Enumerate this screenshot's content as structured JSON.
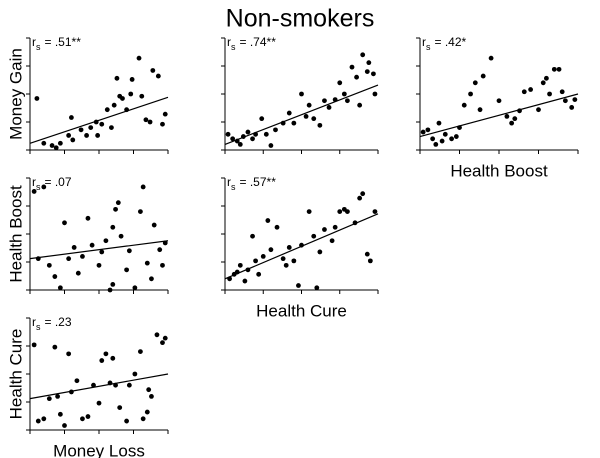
{
  "title": "Non-smokers",
  "chart_data": [
    {
      "type": "scatter",
      "ylabel": "Money Gain",
      "color": "#000000",
      "annotation": {
        "symbol": "r",
        "subscript": "s",
        "text": "= .51**"
      },
      "xlim": [
        0,
        100
      ],
      "ylim": [
        0,
        100
      ],
      "xticks": [
        0,
        25,
        50,
        75,
        100
      ],
      "yticks": [
        0,
        25,
        50,
        75,
        100
      ],
      "x": [
        5,
        10,
        16,
        19,
        22,
        28,
        30,
        31,
        37,
        41,
        44,
        48,
        49,
        52,
        56,
        59,
        61,
        63,
        65,
        67,
        70,
        73,
        74,
        79,
        81,
        84,
        87,
        89,
        93,
        96,
        98
      ],
      "values": [
        46,
        6,
        4,
        2,
        6,
        13,
        29,
        9,
        18,
        13,
        20,
        25,
        13,
        23,
        36,
        20,
        40,
        64,
        48,
        46,
        36,
        50,
        63,
        82,
        48,
        27,
        25,
        71,
        66,
        23,
        32
      ],
      "fit": {
        "x": [
          0,
          100
        ],
        "values": [
          6,
          47
        ]
      }
    },
    {
      "type": "scatter",
      "color": "#000000",
      "annotation": {
        "symbol": "r",
        "subscript": "s",
        "text": "= .74**"
      },
      "xlim": [
        0,
        100
      ],
      "ylim": [
        0,
        100
      ],
      "xticks": [
        0,
        25,
        50,
        75,
        100
      ],
      "yticks": [
        0,
        25,
        50,
        75,
        100
      ],
      "x": [
        2,
        5,
        8,
        10,
        12,
        15,
        18,
        20,
        24,
        27,
        30,
        33,
        38,
        42,
        45,
        50,
        53,
        55,
        58,
        62,
        65,
        68,
        72,
        75,
        78,
        80,
        83,
        86,
        88,
        90,
        93,
        94,
        97,
        98
      ],
      "values": [
        14,
        10,
        8,
        5,
        12,
        16,
        10,
        14,
        28,
        14,
        4,
        18,
        24,
        33,
        24,
        50,
        30,
        40,
        28,
        22,
        44,
        38,
        45,
        60,
        50,
        44,
        74,
        65,
        40,
        85,
        70,
        78,
        68,
        50
      ],
      "fit": {
        "x": [
          0,
          100
        ],
        "values": [
          5,
          58
        ]
      }
    },
    {
      "type": "scatter",
      "xlabel": "Health Boost",
      "color": "#000000",
      "annotation": {
        "symbol": "r",
        "subscript": "s",
        "text": "= .42*"
      },
      "xlim": [
        0,
        100
      ],
      "ylim": [
        0,
        100
      ],
      "xticks": [
        0,
        25,
        50,
        75,
        100
      ],
      "yticks": [
        0,
        25,
        50,
        75,
        100
      ],
      "x": [
        2,
        5,
        8,
        10,
        12,
        14,
        16,
        20,
        23,
        25,
        28,
        32,
        35,
        38,
        40,
        45,
        50,
        55,
        58,
        60,
        63,
        66,
        70,
        75,
        78,
        80,
        82,
        85,
        88,
        90,
        92,
        96,
        98
      ],
      "values": [
        16,
        18,
        10,
        5,
        24,
        8,
        14,
        10,
        12,
        20,
        40,
        50,
        60,
        36,
        66,
        82,
        44,
        30,
        24,
        28,
        35,
        52,
        54,
        36,
        60,
        64,
        50,
        72,
        72,
        52,
        44,
        38,
        45
      ],
      "fit": {
        "x": [
          0,
          100
        ],
        "values": [
          12,
          50
        ]
      }
    },
    {
      "type": "scatter",
      "ylabel": "Health Boost",
      "color": "#000000",
      "annotation": {
        "symbol": "r",
        "subscript": "s",
        "text": "= .07"
      },
      "xlim": [
        0,
        100
      ],
      "ylim": [
        0,
        100
      ],
      "xticks": [
        0,
        25,
        50,
        75,
        100
      ],
      "yticks": [
        0,
        25,
        50,
        75,
        100
      ],
      "x": [
        3,
        6,
        10,
        14,
        18,
        22,
        25,
        28,
        32,
        35,
        38,
        42,
        45,
        50,
        52,
        55,
        58,
        60,
        60,
        62,
        64,
        66,
        70,
        72,
        76,
        80,
        82,
        85,
        88,
        90,
        94,
        96,
        98
      ],
      "values": [
        88,
        28,
        92,
        22,
        12,
        2,
        60,
        28,
        38,
        15,
        30,
        64,
        40,
        22,
        34,
        44,
        0,
        56,
        5,
        72,
        78,
        48,
        18,
        35,
        2,
        70,
        92,
        24,
        10,
        58,
        36,
        22,
        42
      ],
      "fit": {
        "x": [
          0,
          100
        ],
        "values": [
          28,
          44
        ]
      }
    },
    {
      "type": "scatter",
      "xlabel": "Health Cure",
      "color": "#000000",
      "annotation": {
        "symbol": "r",
        "subscript": "s",
        "text": "= .57**"
      },
      "xlim": [
        0,
        100
      ],
      "ylim": [
        0,
        100
      ],
      "xticks": [
        0,
        25,
        50,
        75,
        100
      ],
      "yticks": [
        0,
        25,
        50,
        75,
        100
      ],
      "x": [
        3,
        6,
        8,
        10,
        13,
        15,
        18,
        20,
        22,
        25,
        28,
        30,
        34,
        38,
        40,
        42,
        45,
        48,
        50,
        55,
        58,
        60,
        62,
        65,
        70,
        72,
        75,
        78,
        80,
        85,
        88,
        90,
        93,
        95,
        98
      ],
      "values": [
        10,
        14,
        16,
        22,
        8,
        18,
        48,
        26,
        14,
        30,
        62,
        36,
        56,
        28,
        22,
        38,
        26,
        4,
        40,
        70,
        48,
        2,
        34,
        54,
        44,
        56,
        70,
        72,
        70,
        60,
        82,
        86,
        32,
        26,
        70
      ],
      "fit": {
        "x": [
          0,
          100
        ],
        "values": [
          10,
          68
        ]
      }
    },
    {
      "type": "scatter",
      "ylabel": "Health Cure",
      "xlabel": "Money Loss",
      "color": "#000000",
      "annotation": {
        "symbol": "r",
        "subscript": "s",
        "text": "= .23"
      },
      "xlim": [
        0,
        100
      ],
      "ylim": [
        0,
        100
      ],
      "xticks": [
        0,
        25,
        50,
        75,
        100
      ],
      "yticks": [
        0,
        25,
        50,
        75,
        100
      ],
      "x": [
        3,
        6,
        10,
        14,
        18,
        20,
        22,
        25,
        28,
        30,
        34,
        38,
        42,
        46,
        50,
        52,
        55,
        58,
        60,
        62,
        65,
        70,
        72,
        76,
        80,
        82,
        85,
        86,
        88,
        92,
        96,
        98
      ],
      "values": [
        76,
        8,
        10,
        28,
        74,
        30,
        14,
        4,
        68,
        34,
        44,
        10,
        12,
        40,
        24,
        62,
        68,
        42,
        64,
        40,
        20,
        8,
        40,
        50,
        70,
        10,
        16,
        36,
        30,
        85,
        78,
        82
      ],
      "fit": {
        "x": [
          0,
          100
        ],
        "values": [
          28,
          50
        ]
      }
    }
  ]
}
